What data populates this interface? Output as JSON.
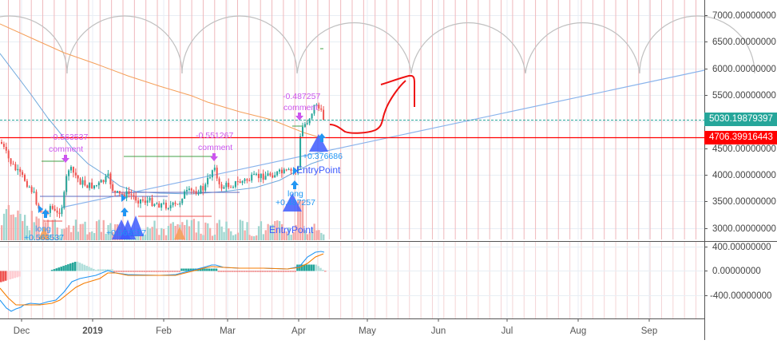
{
  "chart_data": {
    "type": "candlestick",
    "title": "",
    "panes": [
      {
        "name": "price",
        "y_ticks": [
          "7000.00000000",
          "6500.00000000",
          "6000.00000000",
          "5500.00000000",
          "4500.00000000",
          "4000.00000000",
          "3500.00000000",
          "3000.00000000"
        ],
        "ylim": [
          2800,
          7200
        ],
        "current_price": "5030.19879397",
        "horizontal_level": "4706.39916443",
        "series": [
          {
            "name": "MA (orange)",
            "description": "descending from ~6800 (Nov) to ~4750 (Apr)"
          },
          {
            "name": "MA (blue)",
            "description": "descending from ~6300 to ~3900 then rising to ~4300"
          },
          {
            "name": "trendline",
            "description": "rising from ~3500 (Feb) to ~6000 (Sep)"
          }
        ],
        "annotations": [
          {
            "text": "-0.563537",
            "type": "comment-value"
          },
          {
            "text": "comment"
          },
          {
            "text": "long"
          },
          {
            "text": "+0.563537"
          },
          {
            "text": "long"
          },
          {
            "text": "+0.563537"
          },
          {
            "text": "-0.551267"
          },
          {
            "text": "comment"
          },
          {
            "text": "EntryPoint"
          },
          {
            "text": "long"
          },
          {
            "text": "+0.487257"
          },
          {
            "text": "EntryPoint"
          },
          {
            "text": "-0.487257"
          },
          {
            "text": "comment"
          },
          {
            "text": "long"
          },
          {
            "text": "+0.376686"
          }
        ]
      },
      {
        "name": "macd",
        "y_ticks": [
          "400.00000000",
          "0.00000000",
          "-400.00000000"
        ],
        "series": [
          {
            "name": "MACD",
            "color": "#2196f3"
          },
          {
            "name": "Signal",
            "color": "#f57c00"
          },
          {
            "name": "Histogram",
            "color": "#26a69a"
          }
        ]
      }
    ],
    "x_ticks": [
      "Dec",
      "2019",
      "Feb",
      "Mar",
      "Apr",
      "May",
      "Jun",
      "Jul",
      "Aug",
      "Sep"
    ]
  },
  "price_axis": {
    "labels": [
      "7000.00000000",
      "6500.00000000",
      "6000.00000000",
      "5500.00000000",
      "4500.00000000",
      "4000.00000000",
      "3500.00000000",
      "3000.00000000"
    ],
    "current_price_tag": "5030.19879397",
    "level_tag": "4706.39916443"
  },
  "macd_axis": {
    "labels": [
      "400.00000000",
      "0.00000000",
      "-400.00000000"
    ]
  },
  "time_axis": {
    "labels": [
      "Dec",
      "2019",
      "Feb",
      "Mar",
      "Apr",
      "May",
      "Jun",
      "Jul",
      "Aug",
      "Sep"
    ]
  },
  "labels": {
    "l1_value": "-0.563537",
    "l1_comment": "comment",
    "l2_long": "long",
    "l2_value": "+0.563537",
    "l3_value": "+0.563537",
    "l4_value": "-0.551267",
    "l4_comment": "comment",
    "l5_entry": "EntryPoint",
    "l6_long": "long",
    "l6_value": "+0.487257",
    "l7_entry": "EntryPoint",
    "l8_value": "-0.487257",
    "l8_comment": "comment",
    "l9_value": "+0.376686"
  },
  "colors": {
    "up": "#26a69a",
    "down": "#ef5350",
    "level": "#ff0000",
    "current": "#26a69a",
    "annotation_purple": "#cc55ee",
    "signal_blue": "#3d5afe"
  }
}
